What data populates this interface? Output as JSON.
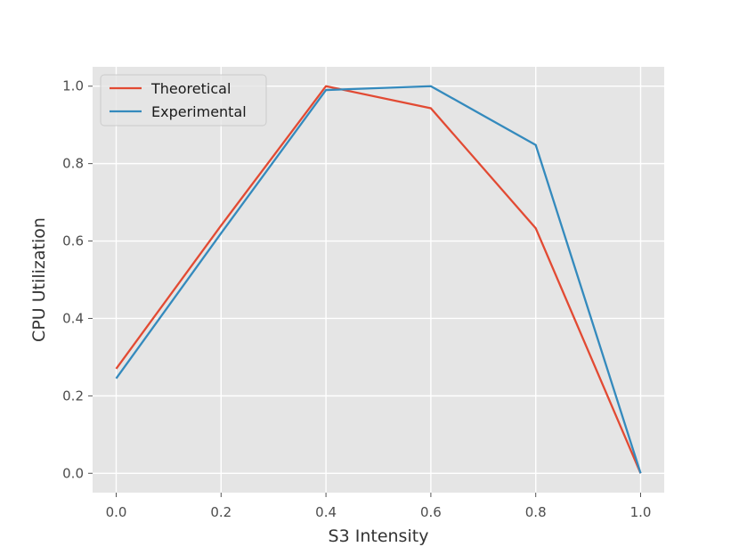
{
  "chart_data": {
    "type": "line",
    "title": "",
    "xlabel": "S3 Intensity",
    "ylabel": "CPU Utilization",
    "x": [
      0.0,
      0.2,
      0.4,
      0.6,
      0.8,
      1.0
    ],
    "xlim": [
      -0.045,
      1.045
    ],
    "ylim": [
      -0.05,
      1.05
    ],
    "xticks": [
      0.0,
      0.2,
      0.4,
      0.6,
      0.8,
      1.0
    ],
    "xtick_labels": [
      "0.0",
      "0.2",
      "0.4",
      "0.6",
      "0.8",
      "1.0"
    ],
    "yticks": [
      0.0,
      0.2,
      0.4,
      0.6,
      0.8,
      1.0
    ],
    "ytick_labels": [
      "0.0",
      "0.2",
      "0.4",
      "0.6",
      "0.8",
      "1.0"
    ],
    "grid": true,
    "legend_position": "top-left",
    "series": [
      {
        "name": "Theoretical",
        "color": "#E24A33",
        "values": [
          0.27,
          0.64,
          1.0,
          0.943,
          0.633,
          0.0
        ]
      },
      {
        "name": "Experimental",
        "color": "#348ABD",
        "values": [
          0.245,
          0.62,
          0.99,
          1.0,
          0.848,
          0.0
        ]
      }
    ]
  }
}
